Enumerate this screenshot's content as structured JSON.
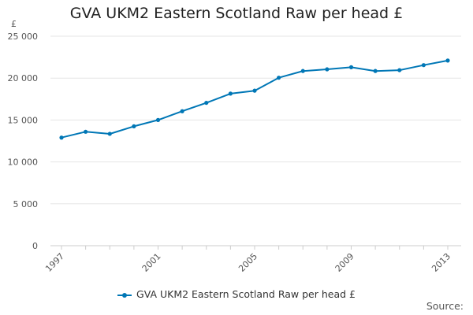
{
  "chart_data": {
    "type": "line",
    "title": "GVA UKM2 Eastern Scotland Raw per head £",
    "ylabel": "£",
    "xlabel": "",
    "ylim": [
      0,
      25000
    ],
    "yticks": [
      0,
      5000,
      10000,
      15000,
      20000,
      25000
    ],
    "ytick_labels": [
      "0",
      "5 000",
      "10 000",
      "15 000",
      "20 000",
      "25 000"
    ],
    "xtick_labels": [
      "1997",
      "2001",
      "2005",
      "2009",
      "2013"
    ],
    "x": [
      1997,
      1998,
      1999,
      2000,
      2001,
      2002,
      2003,
      2004,
      2005,
      2006,
      2007,
      2008,
      2009,
      2010,
      2011,
      2012,
      2013
    ],
    "series": [
      {
        "name": "GVA UKM2 Eastern Scotland Raw per head £",
        "color": "#0077b6",
        "values": [
          12900,
          13600,
          13350,
          14250,
          15000,
          16050,
          17050,
          18150,
          18500,
          20050,
          20850,
          21050,
          21300,
          20850,
          20950,
          21550,
          22100
        ]
      }
    ],
    "grid": "horizontal",
    "legend": "bottom-center"
  },
  "footer": {
    "source": "Source:"
  }
}
